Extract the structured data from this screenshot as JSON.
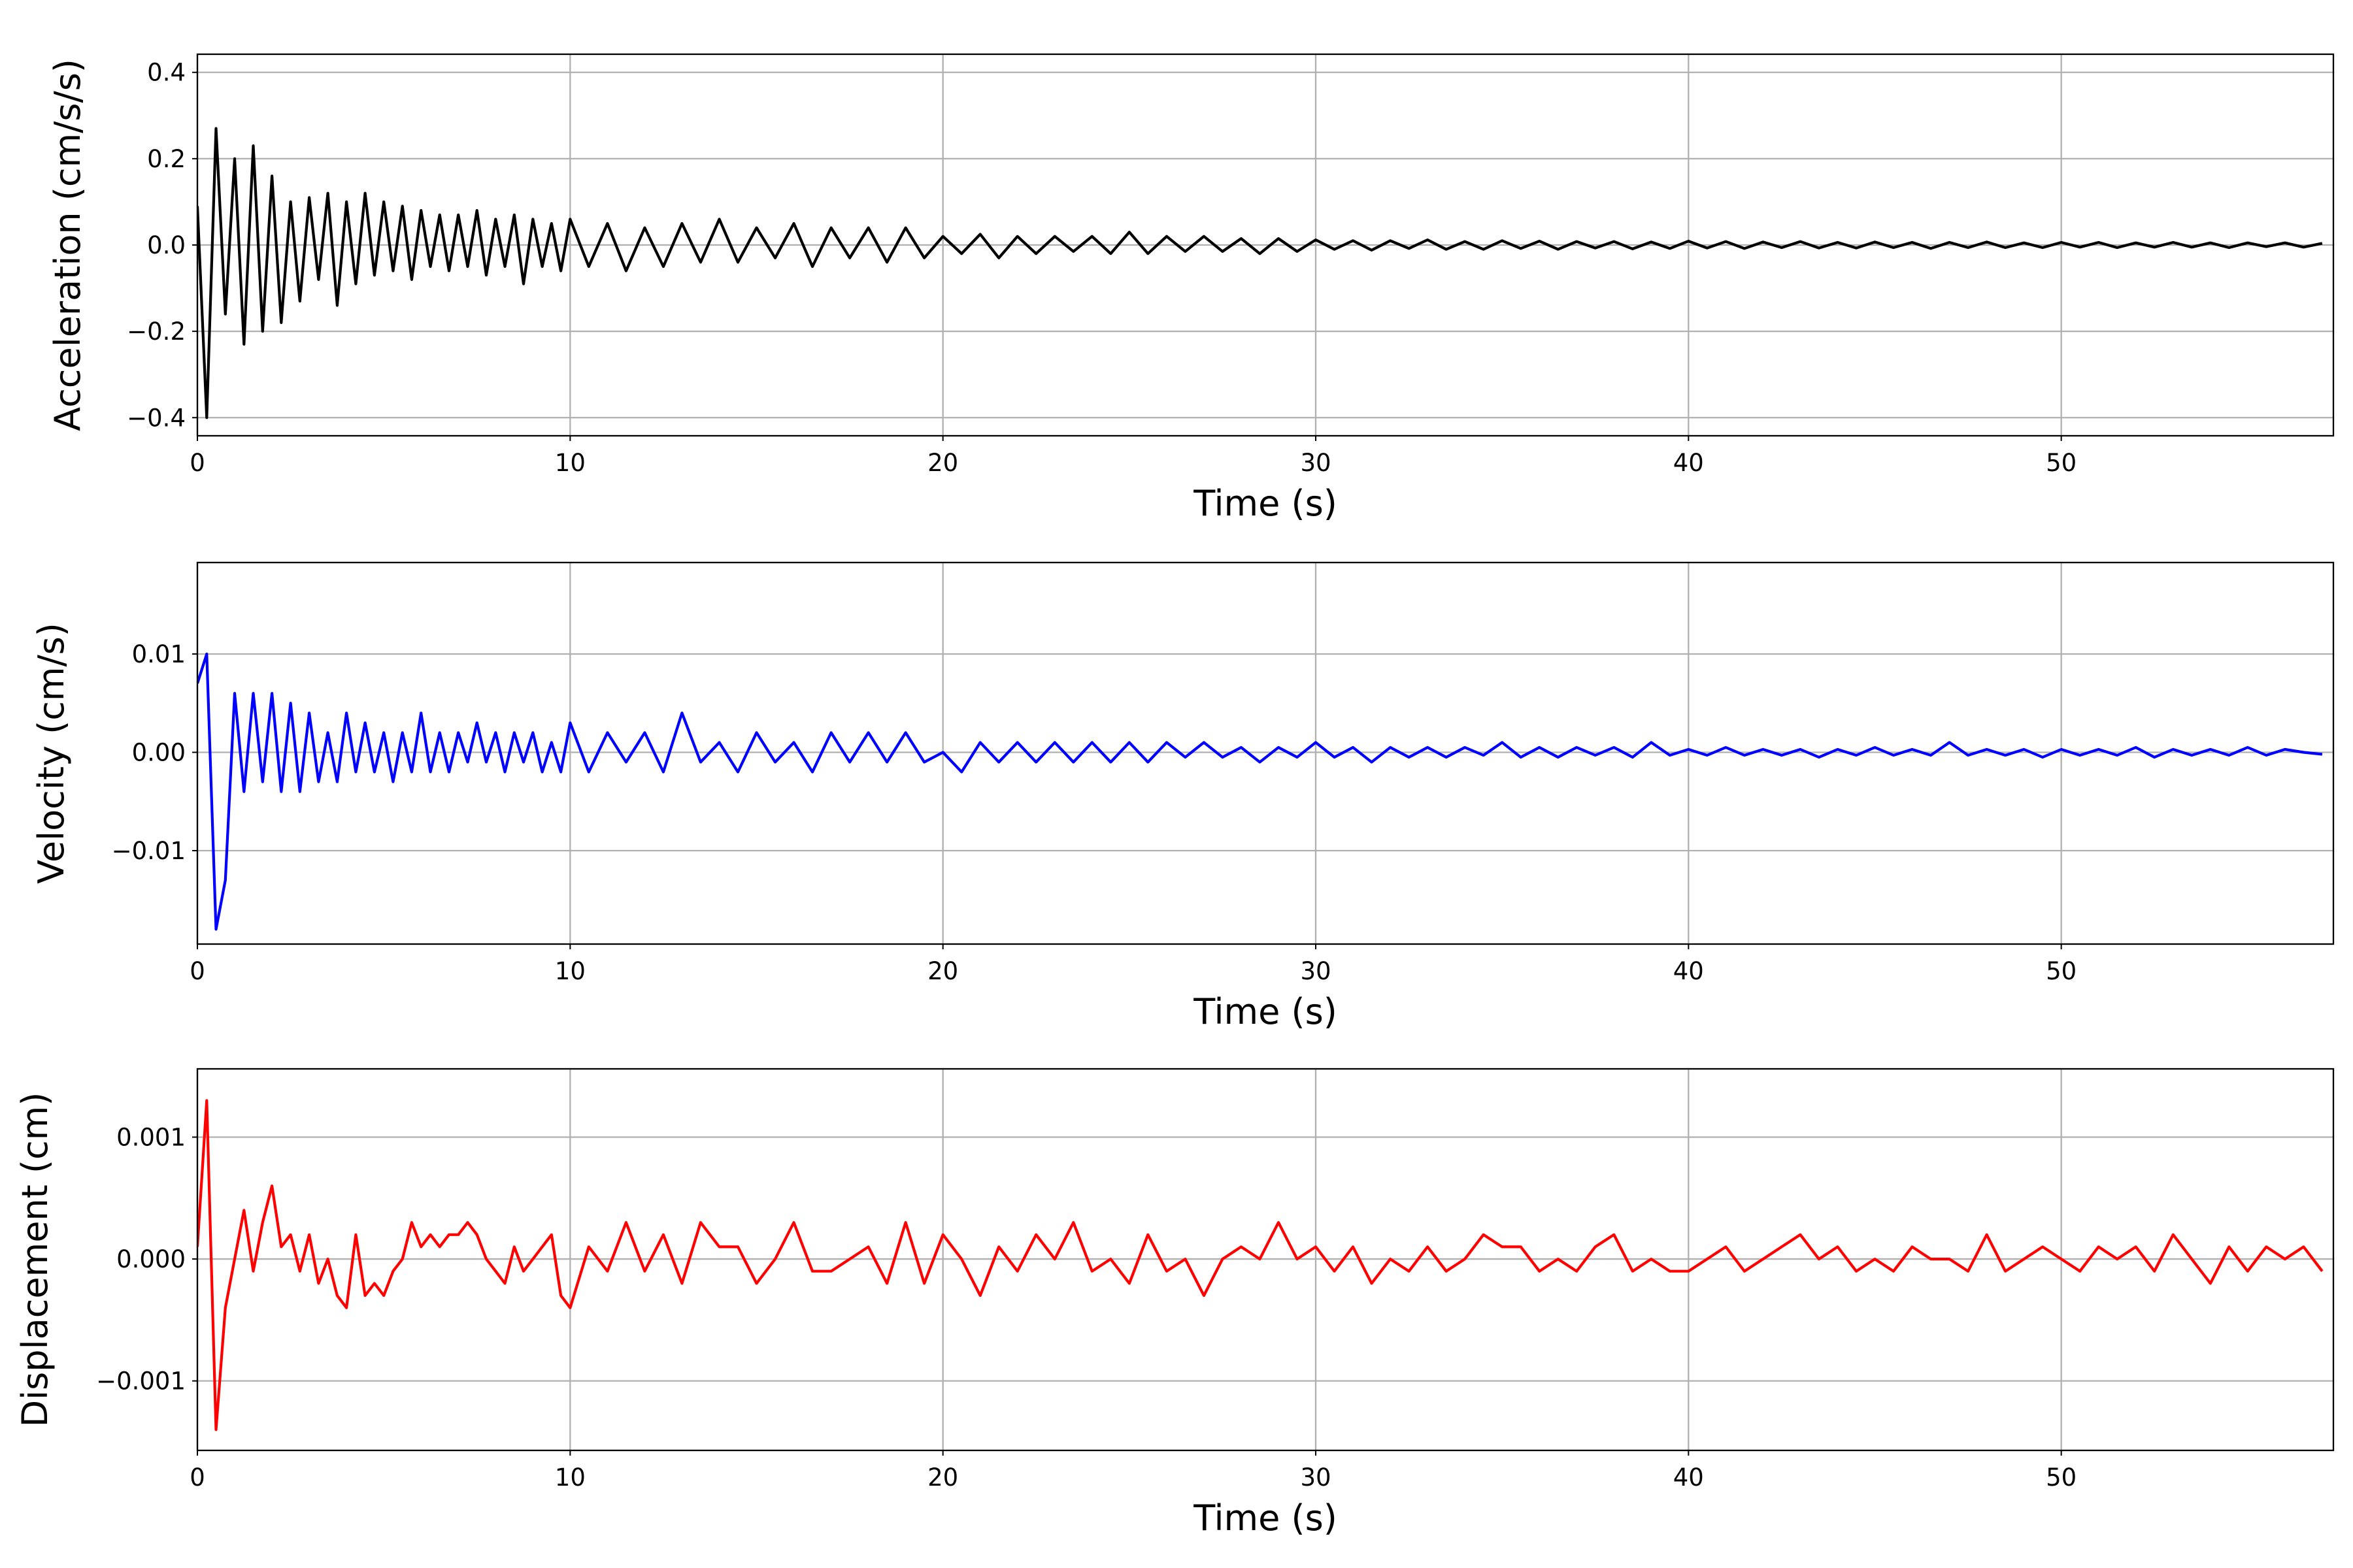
{
  "chart_data": [
    {
      "type": "line",
      "title": "",
      "xlabel": "Time (s)",
      "ylabel": "Acceleration (cm/s/s)",
      "xlim": [
        0,
        57.3
      ],
      "ylim": [
        -0.442,
        0.442
      ],
      "xticks": [
        0,
        10,
        20,
        30,
        40,
        50
      ],
      "xtick_labels": [
        "0",
        "10",
        "20",
        "30",
        "40",
        "50"
      ],
      "yticks": [
        -0.4,
        -0.2,
        0.0,
        0.2,
        0.4
      ],
      "ytick_labels": [
        "−0.4",
        "−0.2",
        "0.0",
        "0.2",
        "0.4"
      ],
      "grid": true,
      "color": "#000000",
      "series": [
        {
          "name": "Acceleration",
          "segments": [
            {
              "t0": 0,
              "dt": 0.25,
              "values": [
                0.09,
                -0.4,
                0.27,
                -0.16,
                0.2,
                -0.23,
                0.23,
                -0.2,
                0.16,
                -0.18,
                0.1,
                -0.13,
                0.11,
                -0.08,
                0.12,
                -0.14,
                0.1,
                -0.09,
                0.12,
                -0.07,
                0.1,
                -0.06,
                0.09,
                -0.08,
                0.08,
                -0.05,
                0.07,
                -0.06,
                0.07,
                -0.05,
                0.08,
                -0.07,
                0.06,
                -0.05,
                0.07,
                -0.09,
                0.06,
                -0.05,
                0.05,
                -0.06
              ]
            },
            {
              "t0": 10,
              "dt": 0.5,
              "values": [
                0.06,
                -0.05,
                0.05,
                -0.06,
                0.04,
                -0.05,
                0.05,
                -0.04,
                0.06,
                -0.04,
                0.04,
                -0.03,
                0.05,
                -0.05,
                0.04,
                -0.03,
                0.04,
                -0.04,
                0.04,
                -0.03,
                0.02,
                -0.02,
                0.025,
                -0.03,
                0.02,
                -0.02,
                0.02,
                -0.015,
                0.02,
                -0.02,
                0.03,
                -0.02,
                0.02,
                -0.015,
                0.02,
                -0.015,
                0.015,
                -0.02,
                0.015,
                -0.015,
                0.012,
                -0.01,
                0.01,
                -0.012,
                0.01,
                -0.008,
                0.012,
                -0.01,
                0.008,
                -0.01,
                0.01,
                -0.008,
                0.009,
                -0.01,
                0.008,
                -0.007,
                0.008,
                -0.009,
                0.007,
                -0.008,
                0.009,
                -0.007,
                0.008,
                -0.008,
                0.007,
                -0.006,
                0.008,
                -0.007,
                0.006,
                -0.007,
                0.007,
                -0.006,
                0.006,
                -0.008,
                0.006,
                -0.006,
                0.007,
                -0.006,
                0.005,
                -0.006,
                0.006,
                -0.005,
                0.006,
                -0.006,
                0.005,
                -0.005,
                0.006,
                -0.005,
                0.005,
                -0.006,
                0.005,
                -0.004,
                0.005,
                -0.005,
                0.004
              ]
            }
          ]
        }
      ]
    },
    {
      "type": "line",
      "title": "",
      "xlabel": "Time (s)",
      "ylabel": "Velocity (cm/s)",
      "xlim": [
        0,
        57.3
      ],
      "ylim": [
        -0.0195,
        0.0193
      ],
      "xticks": [
        0,
        10,
        20,
        30,
        40,
        50
      ],
      "xtick_labels": [
        "0",
        "10",
        "20",
        "30",
        "40",
        "50"
      ],
      "yticks": [
        -0.01,
        0.0,
        0.01
      ],
      "ytick_labels": [
        "−0.01",
        "0.00",
        "0.01"
      ],
      "grid": true,
      "color": "#0000ff",
      "series": [
        {
          "name": "Velocity",
          "segments": [
            {
              "t0": 0,
              "dt": 0.25,
              "values": [
                0.007,
                0.01,
                -0.018,
                -0.013,
                0.006,
                -0.004,
                0.006,
                -0.003,
                0.006,
                -0.004,
                0.005,
                -0.004,
                0.004,
                -0.003,
                0.002,
                -0.003,
                0.004,
                -0.002,
                0.003,
                -0.002,
                0.002,
                -0.003,
                0.002,
                -0.002,
                0.004,
                -0.002,
                0.002,
                -0.002,
                0.002,
                -0.001,
                0.003,
                -0.001,
                0.002,
                -0.002,
                0.002,
                -0.001,
                0.002,
                -0.002,
                0.001,
                -0.002
              ]
            },
            {
              "t0": 10,
              "dt": 0.5,
              "values": [
                0.003,
                -0.002,
                0.002,
                -0.001,
                0.002,
                -0.002,
                0.004,
                -0.001,
                0.001,
                -0.002,
                0.002,
                -0.001,
                0.001,
                -0.002,
                0.002,
                -0.001,
                0.002,
                -0.001,
                0.002,
                -0.001,
                0.0,
                -0.002,
                0.001,
                -0.001,
                0.001,
                -0.001,
                0.001,
                -0.001,
                0.001,
                -0.001,
                0.001,
                -0.001,
                0.001,
                -0.0005,
                0.001,
                -0.0005,
                0.0005,
                -0.001,
                0.0005,
                -0.0005,
                0.001,
                -0.0005,
                0.0005,
                -0.001,
                0.0005,
                -0.0005,
                0.0005,
                -0.0005,
                0.0005,
                -0.0003,
                0.001,
                -0.0005,
                0.0005,
                -0.0005,
                0.0005,
                -0.0003,
                0.0005,
                -0.0005,
                0.001,
                -0.0003,
                0.0003,
                -0.0003,
                0.0005,
                -0.0003,
                0.0003,
                -0.0003,
                0.0003,
                -0.0005,
                0.0003,
                -0.0003,
                0.0005,
                -0.0003,
                0.0003,
                -0.0003,
                0.001,
                -0.0003,
                0.0003,
                -0.0003,
                0.0003,
                -0.0005,
                0.0003,
                -0.0003,
                0.0003,
                -0.0003,
                0.0005,
                -0.0005,
                0.0003,
                -0.0003,
                0.0003,
                -0.0003,
                0.0005,
                -0.0003,
                0.0003,
                0.0,
                -0.0002
              ]
            }
          ]
        }
      ]
    },
    {
      "type": "line",
      "title": "",
      "xlabel": "Time (s)",
      "ylabel": "Displacement (cm)",
      "xlim": [
        0,
        57.3
      ],
      "ylim": [
        -0.00157,
        0.00156
      ],
      "xticks": [
        0,
        10,
        20,
        30,
        40,
        50
      ],
      "xtick_labels": [
        "0",
        "10",
        "20",
        "30",
        "40",
        "50"
      ],
      "yticks": [
        -0.001,
        0.0,
        0.001
      ],
      "ytick_labels": [
        "−0.001",
        "0.000",
        "0.001"
      ],
      "grid": true,
      "color": "#ff0000",
      "series": [
        {
          "name": "Displacement",
          "segments": [
            {
              "t0": 0,
              "dt": 0.25,
              "values": [
                0.0001,
                0.0013,
                -0.0014,
                -0.0004,
                0.0,
                0.0004,
                -0.0001,
                0.0003,
                0.0006,
                0.0001,
                0.0002,
                -0.0001,
                0.0002,
                -0.0002,
                0.0,
                -0.0003,
                -0.0004,
                0.0002,
                -0.0003,
                -0.0002,
                -0.0003,
                -0.0001,
                0.0,
                0.0003,
                0.0001,
                0.0002,
                0.0001,
                0.0002,
                0.0002,
                0.0003,
                0.0002,
                0.0,
                -0.0001,
                -0.0002,
                0.0001,
                -0.0001,
                0.0,
                0.0001,
                0.0002,
                -0.0003
              ]
            },
            {
              "t0": 10,
              "dt": 0.5,
              "values": [
                -0.0004,
                0.0001,
                -0.0001,
                0.0003,
                -0.0001,
                0.0002,
                -0.0002,
                0.0003,
                0.0001,
                0.0001,
                -0.0002,
                0.0,
                0.0003,
                -0.0001,
                -0.0001,
                0.0,
                0.0001,
                -0.0002,
                0.0003,
                -0.0002,
                0.0002,
                0.0,
                -0.0003,
                0.0001,
                -0.0001,
                0.0002,
                0.0,
                0.0003,
                -0.0001,
                0.0,
                -0.0002,
                0.0002,
                -0.0001,
                0.0,
                -0.0003,
                0.0,
                0.0001,
                0.0,
                0.0003,
                0.0,
                0.0001,
                -0.0001,
                0.0001,
                -0.0002,
                0.0,
                -0.0001,
                0.0001,
                -0.0001,
                0.0,
                0.0002,
                0.0001,
                0.0001,
                -0.0001,
                0.0,
                -0.0001,
                0.0001,
                0.0002,
                -0.0001,
                0.0,
                -0.0001,
                -0.0001,
                0.0,
                0.0001,
                -0.0001,
                0.0,
                0.0001,
                0.0002,
                0.0,
                0.0001,
                -0.0001,
                0.0,
                -0.0001,
                0.0001,
                0.0,
                0.0,
                -0.0001,
                0.0002,
                -0.0001,
                0.0,
                0.0001,
                0.0,
                -0.0001,
                0.0001,
                0.0,
                0.0001,
                -0.0001,
                0.0002,
                0.0,
                -0.0002,
                0.0001,
                -0.0001,
                0.0001,
                0.0,
                0.0001,
                -0.0001
              ]
            }
          ]
        }
      ]
    }
  ]
}
